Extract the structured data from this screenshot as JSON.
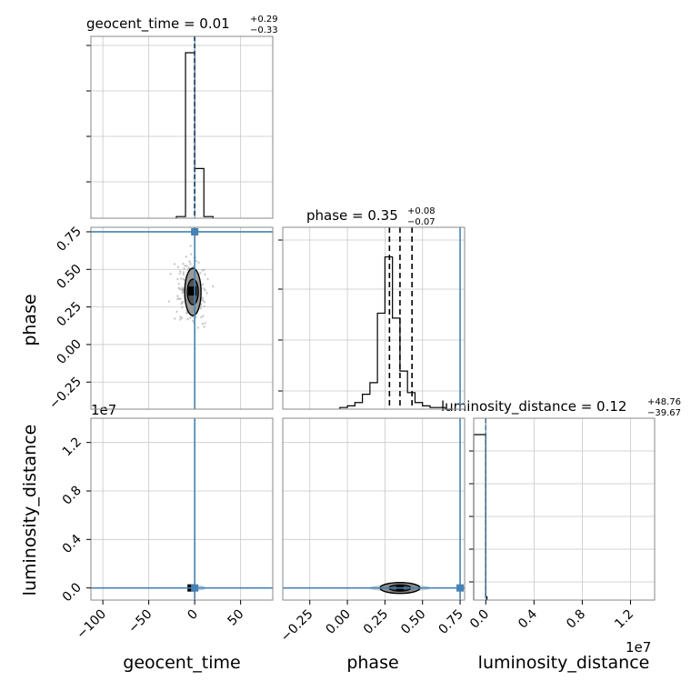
{
  "chart_data": {
    "type": "corner",
    "parameters": [
      "geocent_time",
      "phase",
      "luminosity_distance"
    ],
    "truth": {
      "geocent_time": 0,
      "phase": 0.75,
      "luminosity_distance": 0
    },
    "truth_color": "#4682b4",
    "grid": true,
    "titles": {
      "geocent_time": {
        "label": "geocent_time = 0.01",
        "plus": "+0.29",
        "minus": "−0.33"
      },
      "phase": {
        "label": "phase = 0.35",
        "plus": "+0.08",
        "minus": "−0.07"
      },
      "luminosity_distance": {
        "label": "luminosity_distance = 0.12",
        "plus": "+48.76",
        "minus": "−39.67"
      }
    },
    "axis_labels": {
      "geocent_time": "geocent_time",
      "phase": "phase",
      "luminosity_distance": "luminosity_distance"
    },
    "ticks": {
      "geocent_time": [
        "−100",
        "−50",
        "0",
        "50"
      ],
      "phase_x": [
        "−0.25",
        "0.00",
        "0.25",
        "0.50",
        "0.75"
      ],
      "phase_y": [
        "−0.25",
        "0.00",
        "0.25",
        "0.50",
        "0.75"
      ],
      "luminosity_distance_x": [
        "0.0",
        "0.4",
        "0.8",
        "1.2"
      ],
      "luminosity_distance_y": [
        "0.0",
        "0.4",
        "0.8",
        "1.2"
      ]
    },
    "offset_text": "1e7",
    "ranges": {
      "geocent_time": [
        -113,
        85
      ],
      "phase": [
        -0.43,
        0.78
      ],
      "luminosity_distance": [
        -0.1,
        1.4
      ]
    },
    "hist_geocent_time": {
      "edges": [
        -20,
        -10,
        0,
        10,
        20
      ],
      "counts": [
        0.01,
        1.0,
        0.3,
        0.01
      ],
      "quantile_lines": [
        0.01,
        -0.33,
        0.3
      ]
    },
    "hist_phase": {
      "edges": [
        -0.05,
        0.0,
        0.05,
        0.1,
        0.15,
        0.2,
        0.25,
        0.3,
        0.35,
        0.4,
        0.45,
        0.5,
        0.55,
        0.6,
        0.65,
        0.7
      ],
      "counts": [
        0.01,
        0.02,
        0.04,
        0.09,
        0.16,
        0.58,
        0.92,
        0.55,
        0.23,
        0.1,
        0.04,
        0.02,
        0.01,
        0.01,
        0.0
      ],
      "quantile_lines": [
        0.28,
        0.35,
        0.43
      ]
    },
    "hist_luminosity_distance": {
      "edges": [
        -0.1,
        0.0,
        0.01
      ],
      "counts": [
        1.0,
        0.02
      ],
      "quantile_lines": [
        0.0
      ]
    }
  }
}
